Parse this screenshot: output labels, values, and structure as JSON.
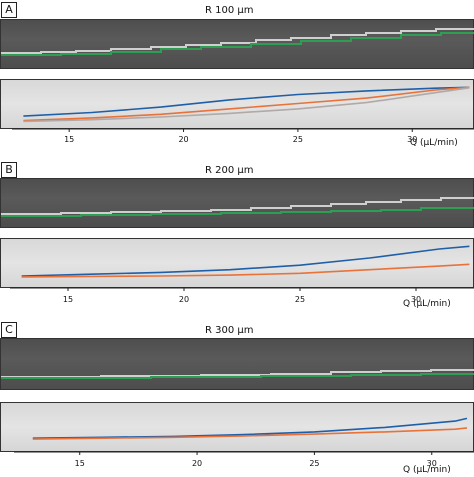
{
  "panels": [
    {
      "letter": "A",
      "title": "R 100 μm"
    },
    {
      "letter": "B",
      "title": "R 200 μm"
    },
    {
      "letter": "C",
      "title": "R 300 μm"
    }
  ],
  "axis_label": "Q (μL/min)",
  "colors": {
    "blue": "#1f5fa8",
    "orange": "#e8723a",
    "grey_trace": "#b0a9a8",
    "green": "#2e9e52",
    "white_trace": "#cfcfcf"
  },
  "chart_data": [
    {
      "type": "line",
      "title": "R 100 μm",
      "xlabel": "Q (μL/min)",
      "xlim": [
        12.5,
        32.7
      ],
      "ylim": [
        0,
        1
      ],
      "xticks": [
        15,
        20,
        25,
        30
      ],
      "series": [
        {
          "color": "#1f5fa8",
          "x": [
            13,
            16,
            19,
            22,
            25,
            28,
            31,
            32.5
          ],
          "y": [
            0.22,
            0.3,
            0.42,
            0.58,
            0.7,
            0.78,
            0.84,
            0.86
          ]
        },
        {
          "color": "#e8723a",
          "x": [
            13,
            16,
            19,
            22,
            25,
            28,
            31,
            32.5
          ],
          "y": [
            0.12,
            0.18,
            0.26,
            0.38,
            0.5,
            0.62,
            0.8,
            0.86
          ]
        },
        {
          "color": "#b0a9a8",
          "x": [
            13,
            16,
            19,
            22,
            25,
            28,
            31,
            32.5
          ],
          "y": [
            0.1,
            0.14,
            0.2,
            0.28,
            0.38,
            0.52,
            0.74,
            0.85
          ]
        }
      ]
    },
    {
      "type": "line",
      "title": "R 200 μm",
      "xlabel": "Q (μL/min)",
      "xlim": [
        12.5,
        32.5
      ],
      "ylim": [
        0,
        1
      ],
      "xticks": [
        15,
        20,
        25,
        30
      ],
      "series": [
        {
          "color": "#1f5fa8",
          "x": [
            13,
            16,
            19,
            22,
            25,
            28,
            31,
            32.3
          ],
          "y": [
            0.2,
            0.24,
            0.28,
            0.34,
            0.44,
            0.6,
            0.8,
            0.86
          ]
        },
        {
          "color": "#e8723a",
          "x": [
            13,
            16,
            19,
            22,
            25,
            28,
            31,
            32.3
          ],
          "y": [
            0.18,
            0.19,
            0.2,
            0.22,
            0.26,
            0.34,
            0.42,
            0.46
          ]
        }
      ]
    },
    {
      "type": "line",
      "title": "R 300 μm",
      "xlabel": "Q (μL/min)",
      "xlim": [
        12.2,
        31.8
      ],
      "ylim": [
        0,
        1
      ],
      "xticks": [
        15,
        20,
        25,
        30
      ],
      "series": [
        {
          "color": "#1f5fa8",
          "x": [
            13,
            16,
            19,
            22,
            25,
            28,
            31,
            31.5
          ],
          "y": [
            0.24,
            0.26,
            0.28,
            0.32,
            0.38,
            0.48,
            0.62,
            0.68
          ]
        },
        {
          "color": "#e8723a",
          "x": [
            13,
            16,
            19,
            22,
            25,
            28,
            31,
            31.5
          ],
          "y": [
            0.22,
            0.24,
            0.26,
            0.29,
            0.33,
            0.38,
            0.44,
            0.47
          ]
        }
      ]
    }
  ]
}
